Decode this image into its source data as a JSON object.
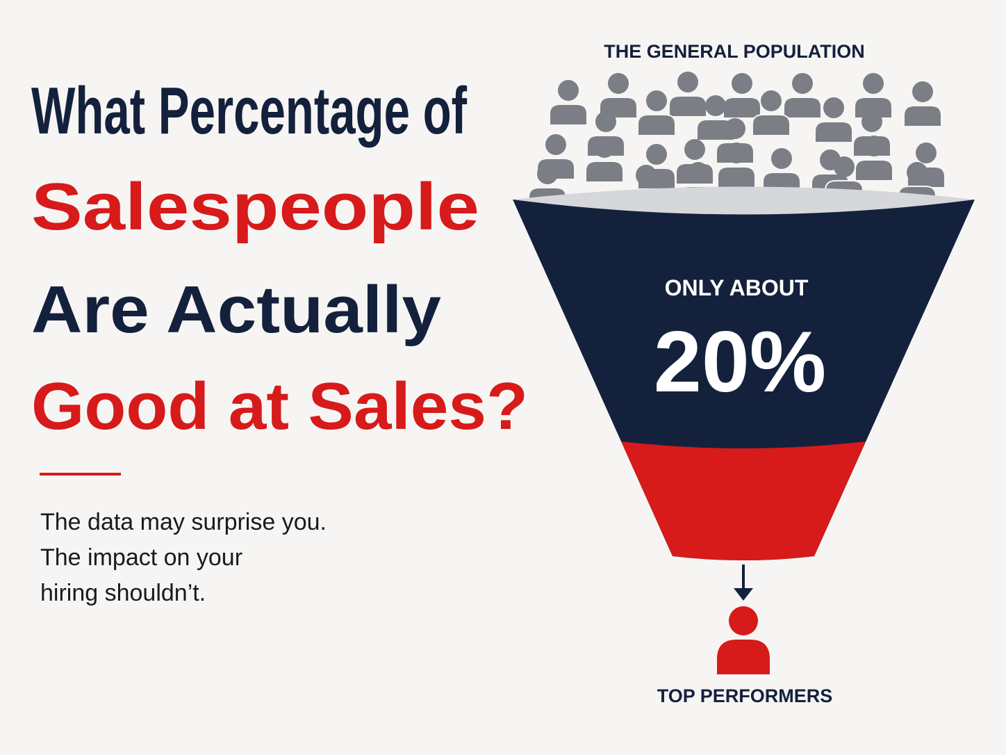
{
  "headline": {
    "lines": [
      "What Percentage of",
      "Salespeople",
      "Are Actually",
      "Good at Sales?"
    ]
  },
  "subtitle": {
    "lines": [
      "The data may surprise you.",
      "The impact on your",
      "hiring shouldn’t."
    ]
  },
  "funnel": {
    "top_label": "THE GENERAL POPULATION",
    "lead_in": "ONLY ABOUT",
    "stat": "20%",
    "bottom_label": "TOP PERFORMERS"
  }
}
